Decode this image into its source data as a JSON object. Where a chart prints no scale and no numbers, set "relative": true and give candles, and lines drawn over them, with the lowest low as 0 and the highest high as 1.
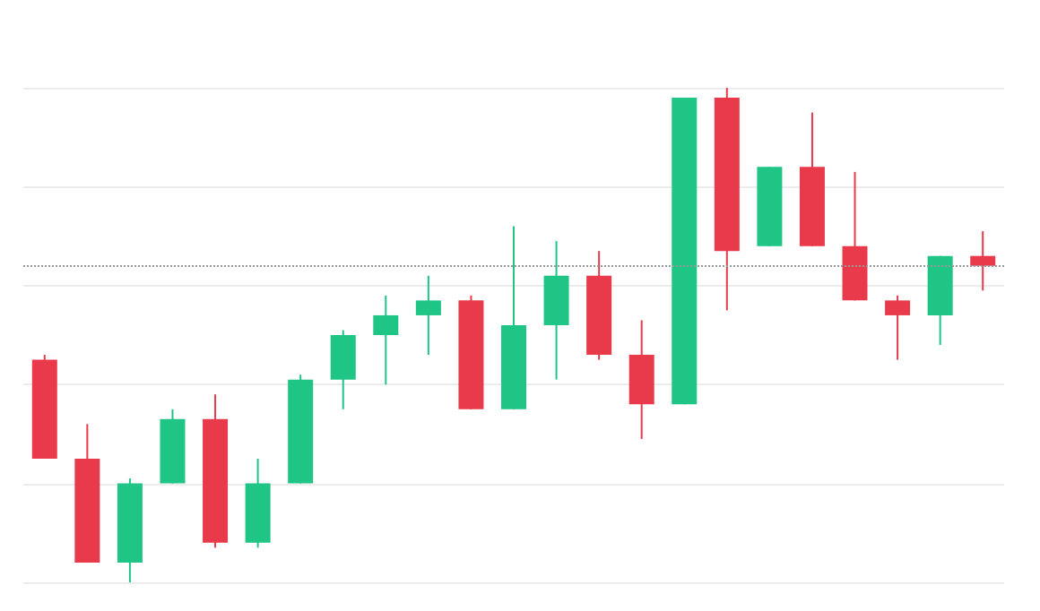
{
  "chart_data": {
    "type": "candlestick",
    "relative": true,
    "grid": "y",
    "categories": [
      null,
      null,
      null,
      null,
      null,
      null,
      null,
      null,
      null,
      null,
      null,
      null,
      null,
      null,
      null,
      null,
      null,
      null,
      null,
      null,
      null,
      null,
      null
    ],
    "ohlc": [
      [
        0.45,
        0.46,
        0.25,
        0.25
      ],
      [
        0.25,
        0.32,
        0.04,
        0.04
      ],
      [
        0.04,
        0.21,
        0,
        0.2
      ],
      [
        0.2,
        0.35,
        0.2,
        0.33
      ],
      [
        0.33,
        0.38,
        0.07,
        0.08
      ],
      [
        0.08,
        0.25,
        0.07,
        0.2
      ],
      [
        0.2,
        0.42,
        0.2,
        0.41
      ],
      [
        0.41,
        0.51,
        0.35,
        0.5
      ],
      [
        0.5,
        0.58,
        0.4,
        0.54
      ],
      [
        0.54,
        0.62,
        0.46,
        0.57
      ],
      [
        0.57,
        0.58,
        0.35,
        0.35
      ],
      [
        0.35,
        0.72,
        0.35,
        0.52
      ],
      [
        0.52,
        0.69,
        0.41,
        0.62
      ],
      [
        0.62,
        0.67,
        0.45,
        0.46
      ],
      [
        0.46,
        0.53,
        0.29,
        0.36
      ],
      [
        0.36,
        0.98,
        0.36,
        0.98
      ],
      [
        0.98,
        1,
        0.55,
        0.67
      ],
      [
        0.68,
        0.84,
        0.68,
        0.84
      ],
      [
        0.84,
        0.95,
        0.68,
        0.68
      ],
      [
        0.68,
        0.83,
        0.57,
        0.57
      ],
      [
        0.57,
        0.58,
        0.45,
        0.54
      ],
      [
        0.54,
        0.66,
        0.48,
        0.66
      ],
      [
        0.66,
        0.71,
        0.59,
        0.64
      ]
    ],
    "colors": [
      "#e83a4a",
      "#e83a4a",
      "#1ec585",
      "#1ec585",
      "#e83a4a",
      "#1ec585",
      "#1ec585",
      "#1ec585",
      "#1ec585",
      "#1ec585",
      "#e83a4a",
      "#1ec585",
      "#1ec585",
      "#e83a4a",
      "#e83a4a",
      "#1ec585",
      "#e83a4a",
      "#1ec585",
      "#e83a4a",
      "#e83a4a",
      "#e83a4a",
      "#1ec585",
      "#e83a4a"
    ],
    "ref_lines": [
      {
        "axis": "y",
        "value": 0.64,
        "color": "#999999",
        "line_style": "dotted"
      }
    ]
  }
}
